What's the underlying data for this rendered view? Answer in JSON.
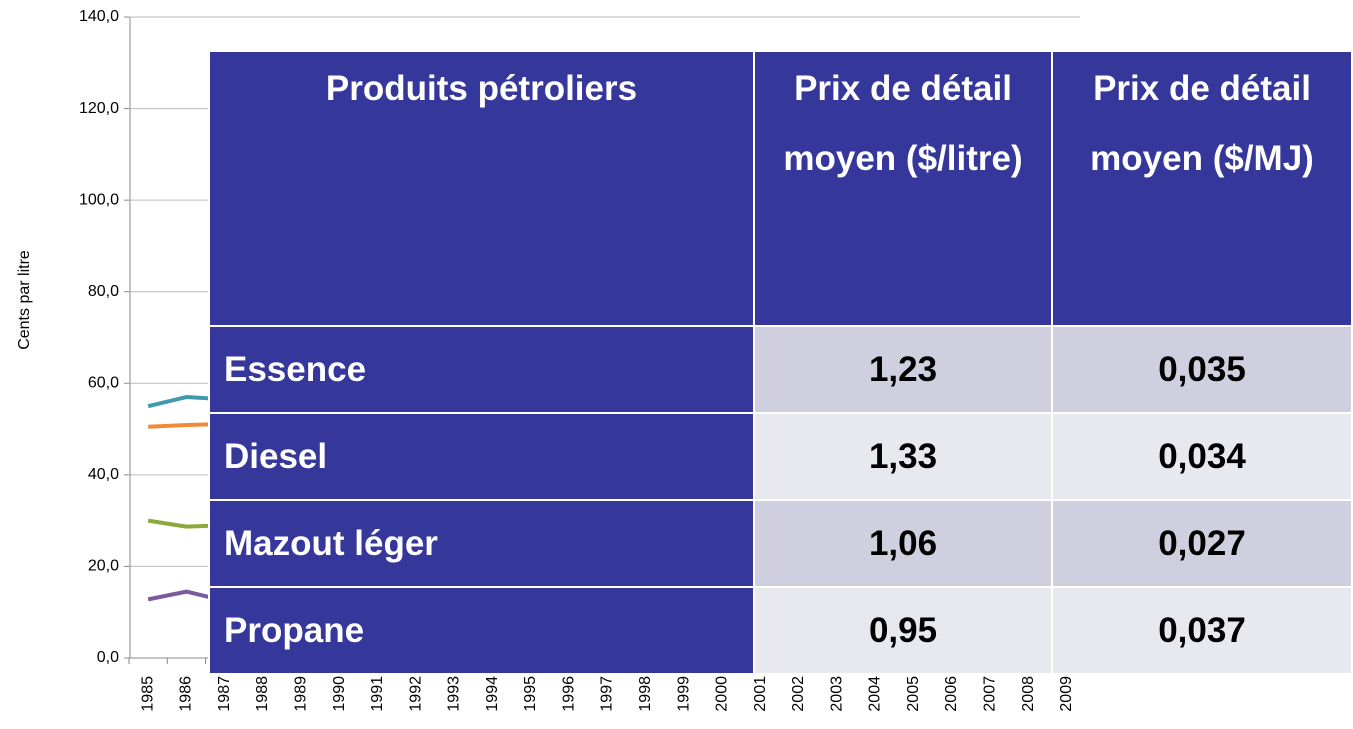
{
  "chart_data": {
    "type": "line",
    "y_label": "Cents par litre",
    "categories": [
      "1985",
      "1986",
      "1987",
      "1988",
      "1989",
      "1990",
      "1991",
      "1992",
      "1993",
      "1994",
      "1995",
      "1996",
      "1997",
      "1998",
      "1999",
      "2000",
      "2001",
      "2002",
      "2003",
      "2004",
      "2005",
      "2006",
      "2007",
      "2008",
      "2009"
    ],
    "series": [
      {
        "color": "#4198af",
        "values": [
          55,
          57,
          56.5,
          null,
          null,
          null,
          null,
          null,
          null,
          null,
          null,
          null,
          null,
          null,
          null,
          null,
          null,
          null,
          null,
          null,
          null,
          null,
          null,
          null,
          null
        ]
      },
      {
        "color": "#f08a36",
        "values": [
          50.5,
          50.9,
          51.1,
          null,
          null,
          null,
          null,
          null,
          null,
          null,
          null,
          null,
          null,
          null,
          null,
          null,
          null,
          null,
          null,
          null,
          null,
          null,
          null,
          null,
          null
        ]
      },
      {
        "color": "#8aaa3c",
        "values": [
          30,
          28.7,
          29,
          null,
          null,
          null,
          null,
          null,
          null,
          null,
          null,
          null,
          null,
          null,
          null,
          null,
          null,
          null,
          null,
          null,
          null,
          null,
          null,
          null,
          null
        ]
      },
      {
        "color": "#7a5a9c",
        "values": [
          12.8,
          14.5,
          12.5,
          null,
          null,
          null,
          null,
          null,
          null,
          null,
          null,
          null,
          null,
          null,
          null,
          null,
          null,
          null,
          null,
          null,
          null,
          null,
          null,
          null,
          null
        ]
      }
    ],
    "ylim": [
      0,
      140
    ],
    "yticks": [
      {
        "value": 0,
        "label": "0,0"
      },
      {
        "value": 20,
        "label": "20,0"
      },
      {
        "value": 40,
        "label": "40,0"
      },
      {
        "value": 60,
        "label": "60,0"
      },
      {
        "value": 80,
        "label": "80,0"
      },
      {
        "value": 100,
        "label": "100,0"
      },
      {
        "value": 120,
        "label": "120,0"
      },
      {
        "value": 140,
        "label": "140,0"
      }
    ],
    "grid": true
  },
  "table": {
    "header": [
      "Produits pétroliers",
      "Prix de détail moyen ($/litre)",
      "Prix de détail moyen ($/MJ)"
    ],
    "rows": [
      [
        "Essence",
        "1,23",
        "0,035"
      ],
      [
        "Diesel",
        "1,33",
        "0,034"
      ],
      [
        "Mazout léger",
        "1,06",
        "0,027"
      ],
      [
        "Propane",
        "0,95",
        "0,037"
      ]
    ]
  }
}
